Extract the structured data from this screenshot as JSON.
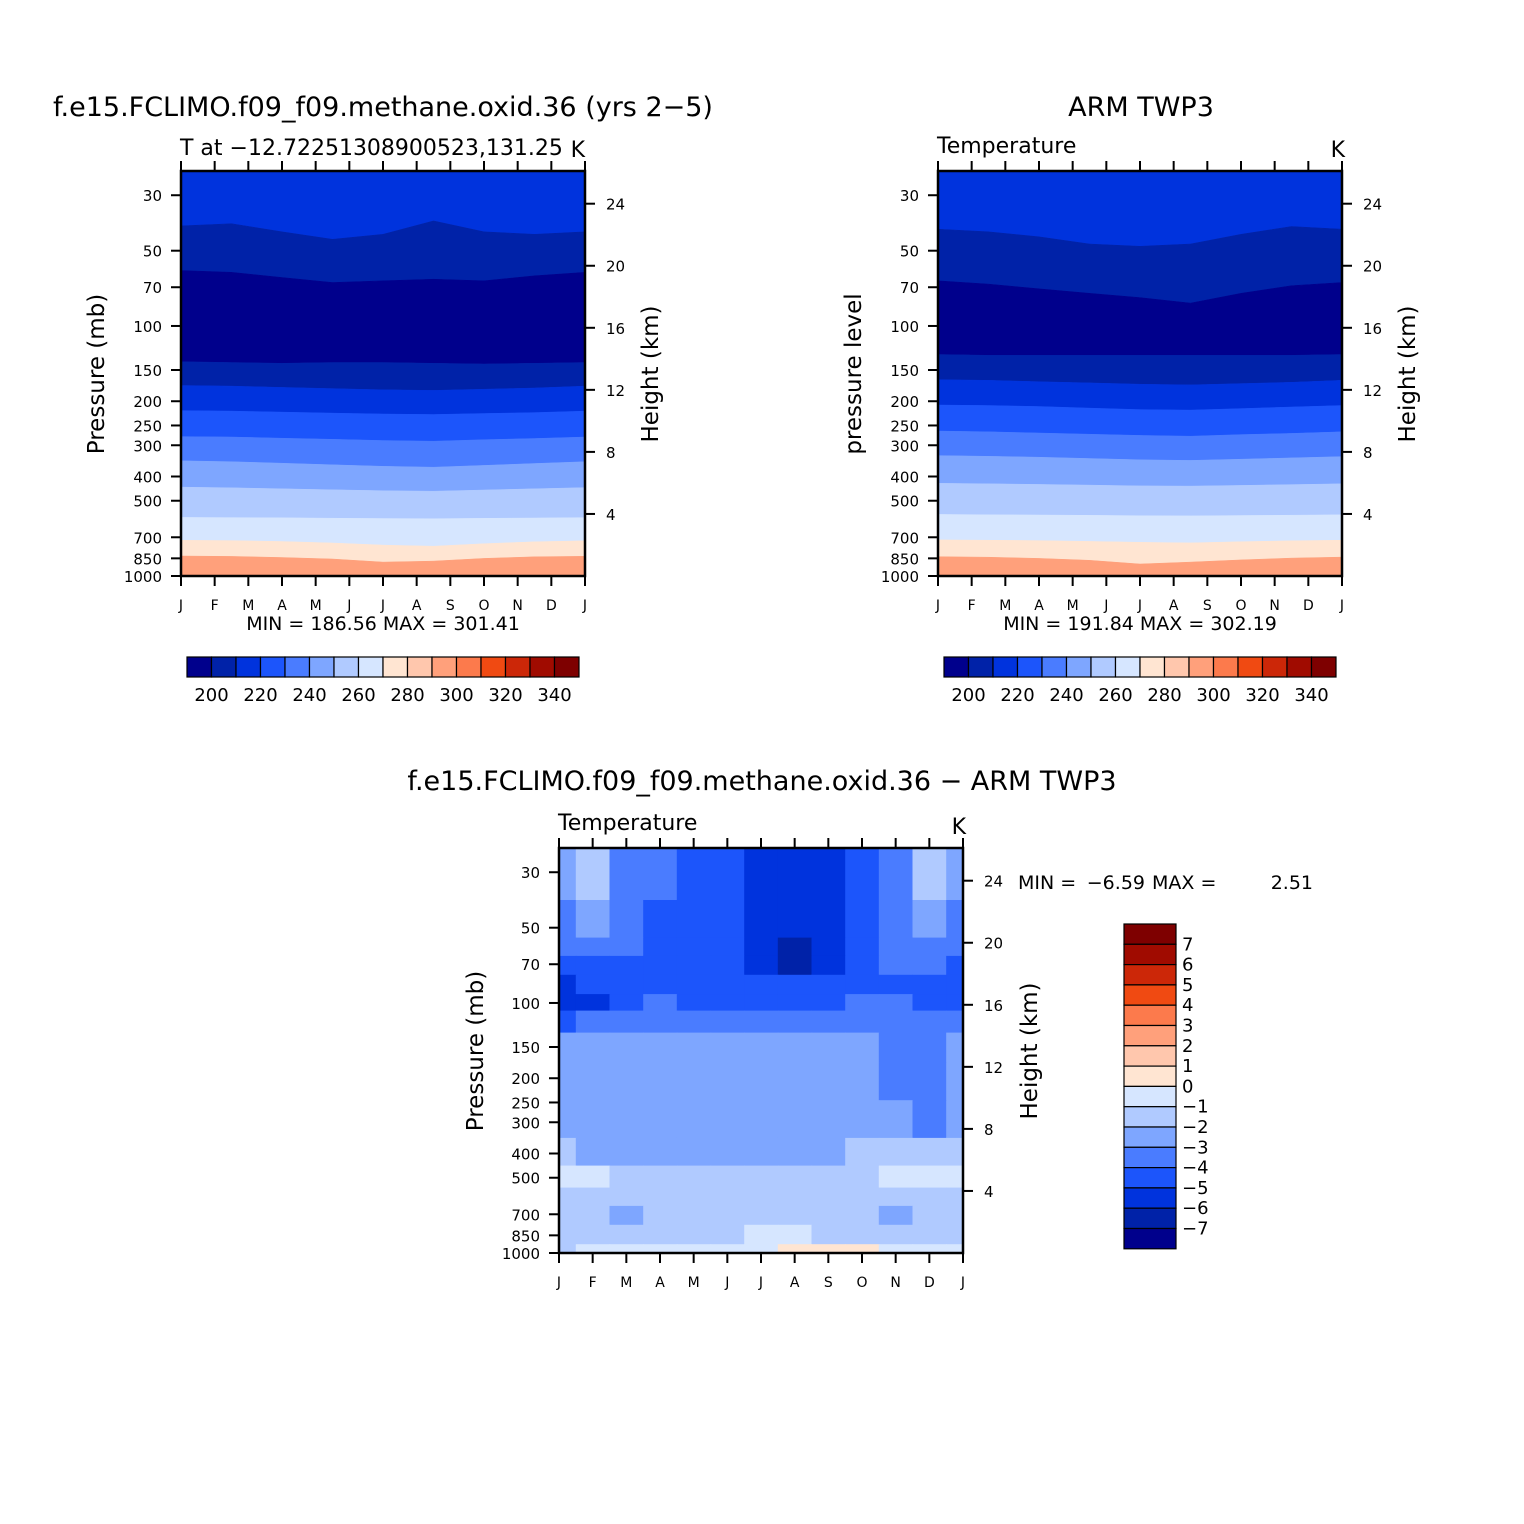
{
  "panels": [
    {
      "title": "f.e15.FCLIMO.f09_f09.methane.oxid.36 (yrs 2−5)",
      "left_label": "T at −12.72251308900523,131.25",
      "right_label": "K",
      "ylabel": "Pressure (mb)",
      "ylabel2": "Height (km)",
      "stats": "MIN = 186.56 MAX = 301.41",
      "colorbar_labels": [
        "200",
        "220",
        "240",
        "260",
        "280",
        "300",
        "320",
        "340"
      ]
    },
    {
      "title": "ARM TWP3",
      "left_label": "Temperature",
      "right_label": "K",
      "ylabel": "pressure level",
      "ylabel2": "Height (km)",
      "stats": "MIN = 191.84 MAX = 302.19",
      "colorbar_labels": [
        "200",
        "220",
        "240",
        "260",
        "280",
        "300",
        "320",
        "340"
      ]
    },
    {
      "title": "f.e15.FCLIMO.f09_f09.methane.oxid.36 − ARM TWP3",
      "left_label": "Temperature",
      "right_label": "K",
      "ylabel": "Pressure (mb)",
      "ylabel2": "Height (km)",
      "stats_min_label": "MIN =",
      "stats_min": "−6.59",
      "stats_max_label": "MAX =",
      "stats_max": "2.51",
      "colorbar_labels": [
        "7",
        "6",
        "5",
        "4",
        "3",
        "2",
        "1",
        "0",
        "−1",
        "−2",
        "−3",
        "−4",
        "−5",
        "−6",
        "−7"
      ]
    }
  ],
  "chart_data": [
    {
      "type": "heatmap",
      "title": "f.e15.FCLIMO.f09_f09.methane.oxid.36 (yrs 2−5)",
      "x_months": [
        "J",
        "F",
        "M",
        "A",
        "M",
        "J",
        "J",
        "A",
        "S",
        "O",
        "N",
        "D",
        "J"
      ],
      "y_pressure_ticks": [
        30,
        50,
        70,
        100,
        150,
        200,
        250,
        300,
        400,
        500,
        700,
        850,
        1000
      ],
      "y_height_ticks": [
        24,
        20,
        16,
        12,
        8,
        4
      ],
      "ylim_pressure": [
        1000,
        24
      ],
      "contour_levels": [
        200,
        210,
        220,
        230,
        240,
        250,
        260,
        270,
        280,
        290,
        300,
        310,
        320,
        330,
        340
      ],
      "contour_boundaries_mb": [
        [
          39.8,
          39.0,
          42.0,
          45.0,
          43.0,
          38.0,
          42.0,
          43.0,
          42.0
        ],
        [
          60.0,
          61.0,
          64.0,
          67.0,
          66.0,
          65.0,
          66.0,
          63.0,
          61.0
        ],
        [
          139.0,
          140.0,
          141.0,
          140.0,
          140.0,
          141.0,
          142.0,
          141.0,
          140.0
        ],
        [
          173.0,
          174.0,
          176.0,
          178.0,
          180.0,
          181.0,
          179.0,
          177.0,
          174.0
        ],
        [
          218.0,
          219.0,
          221.0,
          223.0,
          225.0,
          226.0,
          224.0,
          222.0,
          219.0
        ],
        [
          277.0,
          278.0,
          281.0,
          284.0,
          287.0,
          289.0,
          285.0,
          282.0,
          278.0
        ],
        [
          346.0,
          349.0,
          354.0,
          359.0,
          364.0,
          367.0,
          361.0,
          355.0,
          349.0
        ],
        [
          441.0,
          444.0,
          448.0,
          452.0,
          456.0,
          458.0,
          453.0,
          448.0,
          443.0
        ],
        [
          583.0,
          584.0,
          585.0,
          587.0,
          589.0,
          590.0,
          588.0,
          586.0,
          584.0
        ],
        [
          720.0,
          722.0,
          728.0,
          738.0,
          752.0,
          760.0,
          743.0,
          730.0,
          723.0
        ],
        [
          832.0,
          835.0,
          843.0,
          855.0,
          880.0,
          872.0,
          850.0,
          838.0,
          834.0
        ]
      ],
      "min": 186.56,
      "max": 301.41
    },
    {
      "type": "heatmap",
      "title": "ARM TWP3",
      "x_months": [
        "J",
        "F",
        "M",
        "A",
        "M",
        "J",
        "J",
        "A",
        "S",
        "O",
        "N",
        "D",
        "J"
      ],
      "y_pressure_ticks": [
        30,
        50,
        70,
        100,
        150,
        200,
        250,
        300,
        400,
        500,
        700,
        850,
        1000
      ],
      "y_height_ticks": [
        24,
        20,
        16,
        12,
        8,
        4
      ],
      "ylim_pressure": [
        1000,
        24
      ],
      "contour_levels": [
        200,
        210,
        220,
        230,
        240,
        250,
        260,
        270,
        280,
        290,
        300,
        310,
        320,
        330,
        340
      ],
      "contour_boundaries_mb": [
        [
          41.0,
          42.0,
          44.0,
          47.0,
          48.0,
          47.0,
          43.0,
          40.0,
          41.0
        ],
        [
          66.0,
          68.0,
          71.0,
          74.0,
          77.0,
          81.0,
          74.0,
          69.0,
          67.0
        ],
        [
          130.0,
          131.0,
          131.0,
          131.0,
          131.0,
          131.0,
          131.0,
          131.0,
          130.0
        ],
        [
          164.0,
          165.0,
          167.0,
          169.0,
          171.0,
          172.0,
          170.0,
          168.0,
          165.0
        ],
        [
          207.0,
          208.0,
          210.0,
          213.0,
          216.0,
          217.0,
          214.0,
          211.0,
          208.0
        ],
        [
          263.0,
          265.0,
          268.0,
          271.0,
          274.0,
          276.0,
          272.0,
          269.0,
          265.0
        ],
        [
          330.0,
          332.0,
          335.0,
          339.0,
          343.0,
          345.0,
          341.0,
          337.0,
          333.0
        ],
        [
          426.0,
          428.0,
          430.0,
          433.0,
          436.0,
          437.0,
          434.0,
          431.0,
          428.0
        ],
        [
          567.0,
          569.0,
          570.0,
          572.0,
          574.0,
          575.0,
          573.0,
          571.0,
          569.0
        ],
        [
          717.0,
          719.0,
          722.0,
          727.0,
          733.0,
          737.0,
          729.0,
          723.0,
          719.0
        ],
        [
          837.0,
          841.0,
          850.0,
          865.0,
          895.0,
          880.0,
          862.0,
          848.0,
          840.0
        ]
      ],
      "min": 191.84,
      "max": 302.19
    },
    {
      "type": "heatmap",
      "title": "f.e15.FCLIMO.f09_f09.methane.oxid.36 − ARM TWP3",
      "x_months": [
        "J",
        "F",
        "M",
        "A",
        "M",
        "J",
        "J",
        "A",
        "S",
        "O",
        "N",
        "D",
        "J"
      ],
      "y_pressure_ticks": [
        30,
        50,
        70,
        100,
        150,
        200,
        250,
        300,
        400,
        500,
        700,
        850,
        1000
      ],
      "y_height_ticks": [
        24,
        20,
        16,
        12,
        8,
        4
      ],
      "ylim_pressure": [
        1000,
        24
      ],
      "contour_levels": [
        -7,
        -6,
        -5,
        -4,
        -3,
        -2,
        -1,
        0,
        1,
        2,
        3,
        4,
        5,
        6,
        7
      ],
      "cells_months": [
        0,
        1,
        2,
        3,
        4,
        5,
        6,
        7,
        8,
        9,
        10,
        11,
        12
      ],
      "cells_pressure_mb": [
        30,
        50,
        60,
        70,
        85,
        100,
        115,
        150,
        200,
        300,
        400,
        500,
        600,
        700,
        850,
        1000
      ],
      "cells": [
        [
          -2.2,
          -1.8,
          -3.5,
          -3.5,
          -4.2,
          -4.8,
          -5.4,
          -5.5,
          -5.2,
          -4.2,
          -3.4,
          -2.0,
          -2.2
        ],
        [
          -3.3,
          -2.5,
          -3.5,
          -4.2,
          -4.6,
          -4.8,
          -5.4,
          -5.7,
          -5.4,
          -4.2,
          -3.5,
          -2.5,
          -3.3
        ],
        [
          -3.8,
          -3.3,
          -3.7,
          -4.2,
          -4.6,
          -4.9,
          -5.4,
          -6.2,
          -5.5,
          -4.4,
          -3.6,
          -3.3,
          -3.8
        ],
        [
          -4.8,
          -4.5,
          -4.3,
          -4.5,
          -4.6,
          -4.8,
          -5.4,
          -6.6,
          -5.5,
          -4.6,
          -4.0,
          -3.8,
          -4.8
        ],
        [
          -5.2,
          -4.8,
          -4.6,
          -4.5,
          -4.6,
          -4.7,
          -4.9,
          -5.0,
          -4.8,
          -4.4,
          -4.2,
          -4.4,
          -5.0
        ],
        [
          -5.2,
          -5.3,
          -4.3,
          -4.0,
          -4.2,
          -4.3,
          -4.2,
          -4.2,
          -4.1,
          -3.9,
          -3.9,
          -4.6,
          -4.9
        ],
        [
          -4.2,
          -4.0,
          -3.4,
          -3.3,
          -3.6,
          -3.3,
          -3.3,
          -3.3,
          -3.4,
          -3.2,
          -3.2,
          -3.7,
          -3.6
        ],
        [
          -2.9,
          -2.9,
          -2.9,
          -2.9,
          -2.8,
          -2.8,
          -2.8,
          -2.8,
          -2.9,
          -2.9,
          -3.1,
          -3.5,
          -2.9
        ],
        [
          -2.7,
          -2.7,
          -2.7,
          -2.7,
          -2.7,
          -2.7,
          -2.7,
          -2.7,
          -2.7,
          -2.7,
          -3.1,
          -3.5,
          -2.7
        ],
        [
          -2.5,
          -2.5,
          -2.5,
          -2.6,
          -2.6,
          -2.6,
          -2.6,
          -2.6,
          -2.6,
          -2.5,
          -2.8,
          -3.2,
          -2.5
        ],
        [
          -1.8,
          -2.1,
          -2.2,
          -2.2,
          -2.3,
          -2.3,
          -2.3,
          -2.4,
          -2.3,
          -2.0,
          -1.9,
          -1.7,
          -1.5
        ],
        [
          -0.6,
          -0.8,
          -1.3,
          -1.5,
          -1.6,
          -1.7,
          -1.8,
          -1.6,
          -1.5,
          -1.1,
          -0.8,
          -0.6,
          -0.7
        ],
        [
          -1.3,
          -1.4,
          -1.5,
          -1.6,
          -1.5,
          -1.4,
          -1.4,
          -1.3,
          -1.5,
          -1.4,
          -1.6,
          -1.3,
          -1.2
        ],
        [
          -1.6,
          -1.5,
          -2.2,
          -1.6,
          -1.5,
          -1.4,
          -1.2,
          -1.6,
          -1.5,
          -1.4,
          -2.1,
          -1.8,
          -1.5
        ],
        [
          -1.8,
          -1.6,
          -1.6,
          -1.5,
          -1.3,
          -1.5,
          -0.9,
          -0.9,
          -1.2,
          -1.6,
          -1.5,
          -1.8,
          -1.6
        ],
        [
          -1.2,
          -0.9,
          -0.9,
          -0.9,
          -0.9,
          -0.7,
          -0.3,
          0.6,
          0.7,
          0.5,
          -0.5,
          -0.8,
          -1.0
        ]
      ],
      "min": -6.59,
      "max": 2.51
    }
  ],
  "colors": {
    "temperature_fills": [
      "#00008c",
      "#0022a8",
      "#0033dd",
      "#1c55fb",
      "#4a7cff",
      "#7ea6ff",
      "#b0caff",
      "#d6e6ff",
      "#ffe5d2",
      "#ffc7ad",
      "#ffa07b",
      "#fc7a4c",
      "#f04a12",
      "#cc2708",
      "#a00b00",
      "#7e0000"
    ],
    "difference_fills": [
      "#00008c",
      "#0022a8",
      "#0033dd",
      "#1c55fb",
      "#4a7cff",
      "#7ea6ff",
      "#b0caff",
      "#d6e6ff",
      "#ffe5d2",
      "#ffc7ad",
      "#ffa07b",
      "#fc7a4c",
      "#f04a12",
      "#cc2708",
      "#a00b00",
      "#7e0000"
    ]
  }
}
